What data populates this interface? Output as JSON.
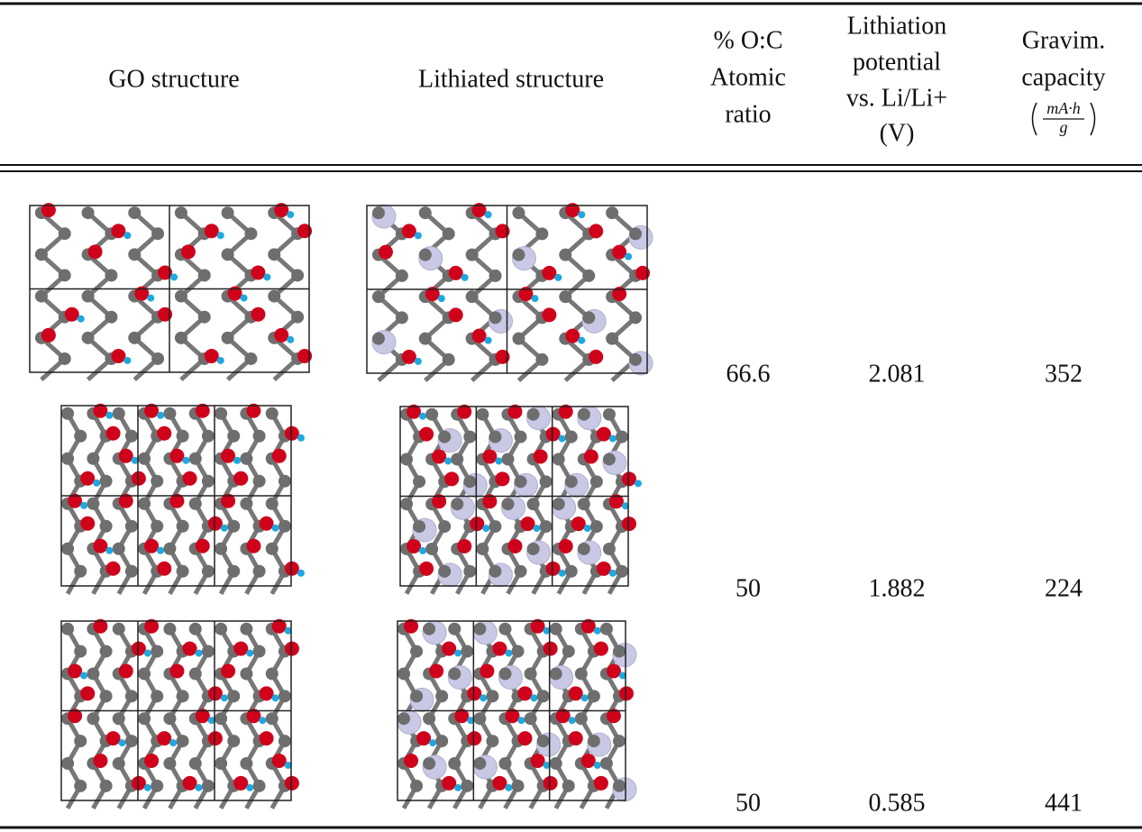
{
  "table": {
    "header": [
      [
        "GO structure"
      ],
      [
        "Lithiated structure"
      ],
      [
        "% O:C",
        "Atomic",
        "ratio"
      ],
      [
        "Lithiation",
        "potential",
        "vs. Li/Li+",
        "(V)"
      ],
      [
        "Gravim.",
        "capacity"
      ]
    ],
    "capacity_unit": {
      "numerator": "mA·h",
      "denominator": "g"
    },
    "rows": [
      [
        66.6,
        2.081,
        352
      ],
      [
        50,
        1.882,
        224
      ],
      [
        50,
        0.585,
        441
      ]
    ]
  }
}
